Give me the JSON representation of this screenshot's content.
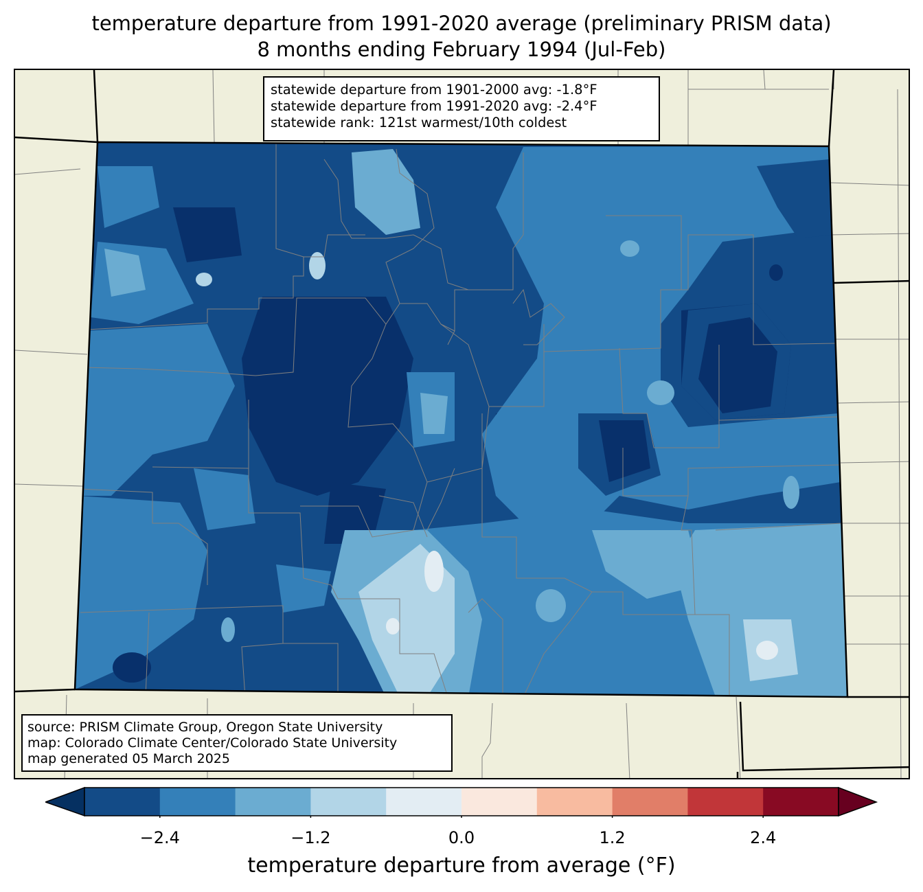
{
  "title": {
    "line1": "temperature departure from 1991-2020 average (preliminary PRISM data)",
    "line2": "8 months ending February 1994 (Jul-Feb)"
  },
  "stats": {
    "line1": "statewide departure from 1901-2000 avg: -1.8°F",
    "line2": "statewide departure from 1991-2020 avg: -2.4°F",
    "line3": "statewide rank: 121st warmest/10th coldest"
  },
  "source": {
    "line1": "source: PRISM Climate Group, Oregon State University",
    "line2": "map: Colorado Climate Center/Colorado State University",
    "line3": "map generated 05 March 2025"
  },
  "colorbar": {
    "label": "temperature departure from average (°F)",
    "ticks": [
      "−2.4",
      "−1.2",
      "0.0",
      "1.2",
      "2.4"
    ],
    "tick_values": [
      -2.4,
      -1.2,
      0.0,
      1.2,
      2.4
    ],
    "bounds": [
      -3.0,
      3.0
    ],
    "step": 0.6,
    "extend": "both",
    "under_color": "#053061",
    "over_color": "#67001f",
    "colors": [
      "#134b87",
      "#3480b9",
      "#6bacd1",
      "#b2d5e7",
      "#e3edf3",
      "#fae8de",
      "#f8bba0",
      "#e17e68",
      "#c13639",
      "#880a23"
    ]
  },
  "map": {
    "land_color": "#efefdc",
    "border_color": "#808080",
    "state_border_color": "#000000"
  }
}
